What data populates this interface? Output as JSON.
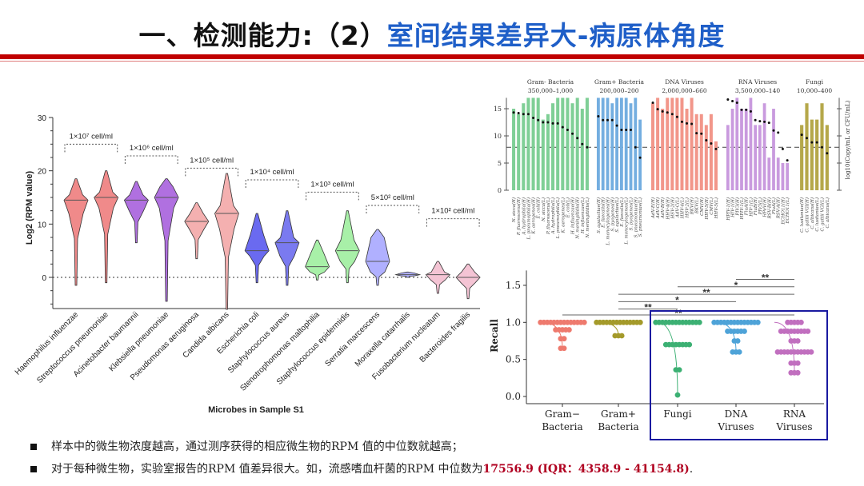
{
  "title": {
    "prefix": "一、检测能力:（2）",
    "highlight": "室间结果差异大-病原体角度"
  },
  "colors": {
    "title_blue": "#1f5fc8",
    "title_red_bar": "#c00000",
    "highlight_red": "#b00020",
    "box_blue": "#1a1aa0"
  },
  "bullets": [
    {
      "text": "样本中的微生物浓度越高，通过测序获得的相应微生物的RPM 值的中位数就越高；"
    },
    {
      "text": "对于每种微生物，实验室报告的RPM 值差异很大。如，流感嗜血杆菌的RPM 中位数为",
      "highlight": "17556.9 (IQR：4358.9 - 41154.8)",
      "suffix": "."
    }
  ],
  "chart_data": [
    {
      "type": "violin",
      "xlabel": "Microbes in Sample S1",
      "ylabel": "Log2 (RPM value)",
      "ylim": [
        -6,
        30
      ],
      "yticks": [
        0,
        10,
        20,
        30
      ],
      "reference_line": 0,
      "categories": [
        "Haemophilus influenzae",
        "Streptococcus pneumoniae",
        "Acinetobacter baumannii",
        "Klebsiella pneumoniae",
        "Pseudomonas aeruginosa",
        "Candida albicans",
        "Escherichia coli",
        "Staphylococcus aureus",
        "Stenotrophomonas maltophilia",
        "Staphylococcus epidermidis",
        "Serratia marcescens",
        "Moraxella catarrhalis",
        "Fusobacterium nucleatum",
        "Bacteroides fragilis"
      ],
      "series": [
        {
          "min": -1.5,
          "q1": 12,
          "median": 14.5,
          "q3": 15.5,
          "max": 18.5,
          "color": "#f08a8a"
        },
        {
          "min": -1,
          "q1": 13,
          "median": 15,
          "q3": 16,
          "max": 20,
          "color": "#f08a8a"
        },
        {
          "min": 6.5,
          "q1": 12.5,
          "median": 14.5,
          "q3": 15.5,
          "max": 18,
          "color": "#b070e0"
        },
        {
          "min": -4.5,
          "q1": 13,
          "median": 15,
          "q3": 17,
          "max": 18.5,
          "color": "#b070e0"
        },
        {
          "min": 3.5,
          "q1": 9,
          "median": 10.5,
          "q3": 12,
          "max": 14,
          "color": "#f4b0b0"
        },
        {
          "min": -6,
          "q1": 9,
          "median": 12,
          "q3": 13.5,
          "max": 19.5,
          "color": "#f4b0b0"
        },
        {
          "min": -1,
          "q1": 4,
          "median": 5,
          "q3": 8,
          "max": 12,
          "color": "#6a6af0"
        },
        {
          "min": -1.5,
          "q1": 4,
          "median": 6.5,
          "q3": 7.5,
          "max": 12.5,
          "color": "#7a7af0"
        },
        {
          "min": -0.5,
          "q1": 1,
          "median": 2,
          "q3": 4.5,
          "max": 7,
          "color": "#a8f0a8"
        },
        {
          "min": -1,
          "q1": 3,
          "median": 5,
          "q3": 7,
          "max": 12.5,
          "color": "#a8f0a8"
        },
        {
          "min": -1.5,
          "q1": 1,
          "median": 3,
          "q3": 7.5,
          "max": 9,
          "color": "#b0b0ff"
        },
        {
          "min": 0,
          "q1": 0.3,
          "median": 0.5,
          "q3": 0.8,
          "max": 1,
          "color": "#b0b0ff"
        },
        {
          "min": -3,
          "q1": -0.5,
          "median": 0.5,
          "q3": 1,
          "max": 3,
          "color": "#f4c4d4"
        },
        {
          "min": -4,
          "q1": -1,
          "median": 0,
          "q3": 1,
          "max": 2.5,
          "color": "#f4c4d4"
        }
      ],
      "annotations": [
        {
          "label": "1×10⁷ cell/ml",
          "from": 0,
          "to": 1,
          "y": 25
        },
        {
          "label": "1×10⁶ cell/ml",
          "from": 2,
          "to": 3,
          "y": 22.8
        },
        {
          "label": "1×10⁵ cell/ml",
          "from": 4,
          "to": 5,
          "y": 20.5
        },
        {
          "label": "1×10⁴ cell/ml",
          "from": 6,
          "to": 7,
          "y": 18.3
        },
        {
          "label": "1×10³ cell/ml",
          "from": 8,
          "to": 9,
          "y": 16
        },
        {
          "label": "5×10² cell/ml",
          "from": 10,
          "to": 11,
          "y": 13.5
        },
        {
          "label": "1×10² cell/ml",
          "from": 12,
          "to": 13,
          "y": 11
        }
      ]
    },
    {
      "type": "bar",
      "ylabel": "log10(Copy/mL or CFU/mL)",
      "ylim": [
        0,
        17
      ],
      "yticks": [
        0,
        5,
        10,
        15
      ],
      "reference_line": 7.9,
      "groups": [
        {
          "name": "Gram- Bacteria",
          "range": "350,000–1,000",
          "color": "#7fcf96",
          "categories": [
            "N. sicca(H)",
            "P. fluorescens(H)",
            "A. hydrophila(H)",
            "L. pneumophila(H)",
            "K. aerogenes(H)",
            "E. coli(H)",
            "N. sicca(L)",
            "P. fluorescens(L)",
            "A. hydrophila(L)",
            "L. pneumophila(L)",
            "K. aerogenes(L)",
            "E. coli(L)",
            "H. influenzae(H)",
            "N. meningitidis(H)",
            "H. influenzae(L)",
            "N. meningitidis(L)"
          ],
          "bars": [
            15,
            14,
            16,
            17,
            17,
            17,
            13,
            14,
            16,
            17,
            17,
            17,
            16,
            17,
            15,
            17
          ],
          "medians": [
            14.3,
            14.2,
            14.0,
            14.0,
            13.3,
            12.9,
            12.5,
            12.5,
            12.3,
            12.3,
            11.6,
            11.1,
            10.4,
            9.6,
            8.5,
            7.9
          ]
        },
        {
          "name": "Gram+ Bacteria",
          "range": "200,000–200",
          "color": "#74aee0",
          "categories": [
            "S. agalactiae(H)",
            "E. faecalis(H)",
            "L. monocytogenes(H)",
            "S. pyogenes(H)",
            "S. agalactiae(L)",
            "E. faecalis(L)",
            "L. monocytogenes(L)",
            "S. pyogenes(L)",
            "S. pneumoniae(H)",
            "S. pneumoniae(L)"
          ],
          "bars": [
            17,
            17,
            17,
            16,
            17,
            17,
            17,
            16,
            17,
            13
          ],
          "medians": [
            13.6,
            12.9,
            12.9,
            12.9,
            11.9,
            11.1,
            11.1,
            11.1,
            7.9,
            6.0
          ]
        },
        {
          "name": "DNA Viruses",
          "range": "2,000,000–660",
          "color": "#f2968a",
          "categories": [
            "AdV-E(H)",
            "AdV-C(H)",
            "AdV-B(H)",
            "HHV-4(H)",
            "HSV-2(H)",
            "AdV-C(L)",
            "HHV-4(L)",
            "HSV-2(L)",
            "BKV(H)",
            "BKV(L)",
            "CMV(H)",
            "HHV-5(H)",
            "CMV(L)",
            "HHV-5(L)"
          ],
          "bars": [
            16,
            17,
            15,
            17,
            17,
            17,
            17,
            15,
            17,
            14,
            14,
            12,
            14,
            9
          ],
          "medians": [
            16.1,
            14.9,
            14.5,
            14.3,
            14.0,
            13.5,
            12.6,
            12.3,
            12.2,
            10.5,
            10.4,
            9.2,
            8.6,
            7.6
          ]
        },
        {
          "name": "RNA Viruses",
          "range": "3,500,000–140",
          "color": "#c99ade",
          "categories": [
            "HPIV-1(H)",
            "HIV-1(H)",
            "PIV3(H)",
            "HPIV-1(L)",
            "FluA(H)",
            "HIV-1(L)",
            "FluB(H)",
            "PIV3(L)",
            "HPeV(H)",
            "RSV-B(H)",
            "FluA(L)",
            "RSV-A(H)",
            "ECHO11(H)",
            "ECHO11(L)"
          ],
          "bars": [
            12,
            15,
            17,
            15,
            15,
            17,
            12,
            12,
            16,
            6,
            15,
            6,
            5,
            5
          ],
          "medians": [
            16.7,
            16.4,
            16.1,
            14.8,
            14.8,
            14.5,
            12.9,
            12.7,
            12.6,
            12.4,
            11.0,
            10.6,
            7.6,
            5.5
          ]
        },
        {
          "name": "Fungi",
          "range": "10,000–400",
          "color": "#b5a84a",
          "categories": [
            "C. lusitaniae(H)",
            "C. gattii VGI(H)",
            "C. albicans(H)",
            "C. lusitaniae(L)",
            "C. gattii VGI(L)",
            "C. albicans(L)"
          ],
          "bars": [
            12,
            16,
            13,
            13,
            16,
            12
          ],
          "medians": [
            10.2,
            9.6,
            8.8,
            8.8,
            7.9,
            6.8
          ]
        }
      ]
    },
    {
      "type": "scatter",
      "ylabel": "Recall",
      "ylim": [
        0,
        1.7
      ],
      "yticks": [
        "0.0",
        "0.5",
        "1.0",
        "1.5"
      ],
      "categories": [
        {
          "line1": "Gram−",
          "line2": "Bacteria",
          "color": "#ee7a6e",
          "levels": [
            [
              1.0,
              14
            ],
            [
              0.9,
              5
            ],
            [
              0.78,
              2
            ],
            [
              0.65,
              2
            ]
          ]
        },
        {
          "line1": "Gram+",
          "line2": "Bacteria",
          "color": "#a49a2a",
          "levels": [
            [
              1.0,
              14
            ],
            [
              0.82,
              3
            ]
          ]
        },
        {
          "line1": "Fungi",
          "line2": "",
          "color": "#3cb073",
          "levels": [
            [
              1.0,
              14
            ],
            [
              0.7,
              8
            ],
            [
              0.36,
              2
            ],
            [
              0.02,
              1
            ]
          ]
        },
        {
          "line1": "DNA",
          "line2": "Viruses",
          "color": "#4ea3d8",
          "levels": [
            [
              1.0,
              14
            ],
            [
              0.88,
              6
            ],
            [
              0.75,
              2
            ],
            [
              0.6,
              3
            ]
          ]
        },
        {
          "line1": "RNA",
          "line2": "Viruses",
          "color": "#c16fbf",
          "levels": [
            [
              1.0,
              5
            ],
            [
              0.88,
              9
            ],
            [
              0.75,
              3
            ],
            [
              0.6,
              11
            ],
            [
              0.45,
              3
            ],
            [
              0.32,
              3
            ]
          ]
        }
      ],
      "significance": [
        {
          "from": 0,
          "to": 4,
          "label": "**",
          "y": 1.1
        },
        {
          "from": 1,
          "to": 2,
          "label": "**",
          "y": 1.18
        },
        {
          "from": 1,
          "to": 3,
          "label": "*",
          "y": 1.28
        },
        {
          "from": 1,
          "to": 4,
          "label": "**",
          "y": 1.38
        },
        {
          "from": 2,
          "to": 4,
          "label": "*",
          "y": 1.48
        },
        {
          "from": 3,
          "to": 4,
          "label": "**",
          "y": 1.58
        }
      ]
    }
  ]
}
